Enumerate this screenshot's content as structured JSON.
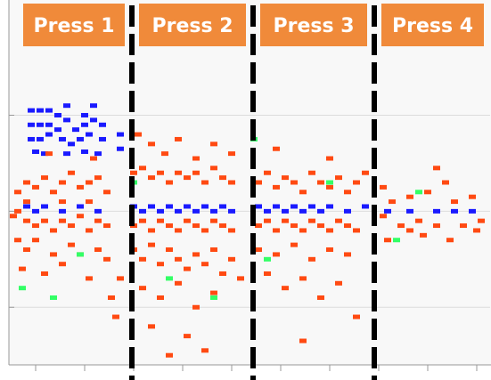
{
  "chart_data": {
    "type": "scatter",
    "headers": [
      "Press 1",
      "Press 2",
      "Press 3",
      "Press 4"
    ],
    "dividers": [
      10.8,
      24.4,
      38
    ],
    "xlim": [
      -3,
      51
    ],
    "ylim": [
      -0.6,
      3.2
    ],
    "xticks": [
      0,
      5.5,
      11,
      16.5,
      22,
      27.5,
      33,
      38.5,
      44,
      49.5
    ],
    "yticks": [
      0,
      1,
      2
    ],
    "grid": true,
    "series": [
      {
        "color": "#1a1aff",
        "x": [
          -0.5,
          0.5,
          1.5,
          2.5,
          3.5,
          5.5,
          6.5,
          -0.5,
          0.5,
          1.5,
          2.5,
          3.5,
          4.5,
          5.5,
          6.5,
          7.5,
          -0.5,
          0.5,
          1.5,
          3.0,
          4.0,
          5.0,
          6.0,
          7.5,
          0.0,
          1.0,
          3.5,
          5.5,
          7.0,
          9.5,
          9.5,
          -1,
          0,
          1,
          3,
          5,
          7,
          11,
          12,
          13,
          14,
          15,
          16,
          17,
          18,
          19,
          20,
          21,
          22,
          25,
          26,
          27,
          28,
          29,
          30,
          31,
          32,
          33,
          35,
          37,
          39.5,
          42,
          45,
          47,
          49
        ],
        "values": [
          2.05,
          2.05,
          2.05,
          2.0,
          2.1,
          2.0,
          2.1,
          1.9,
          1.9,
          1.9,
          1.85,
          1.95,
          1.85,
          1.9,
          1.95,
          1.9,
          1.75,
          1.75,
          1.8,
          1.75,
          1.7,
          1.75,
          1.8,
          1.75,
          1.62,
          1.6,
          1.6,
          1.62,
          1.6,
          1.8,
          1.65,
          1.05,
          1.0,
          1.05,
          1.0,
          1.05,
          1.0,
          1.05,
          1.0,
          1.05,
          1.0,
          1.05,
          1.0,
          1.05,
          1.0,
          1.05,
          1.0,
          1.05,
          1.0,
          1.05,
          1.0,
          1.05,
          1.0,
          1.05,
          1.0,
          1.05,
          1.0,
          1.05,
          1.0,
          1.05,
          1.0,
          1.0,
          1.0,
          1.0,
          1.0
        ]
      },
      {
        "color": "#ff4a12",
        "x": [
          -2,
          -1,
          0,
          1,
          2,
          3,
          4,
          5,
          6,
          7,
          8,
          -2,
          -1,
          0,
          1,
          2,
          3,
          4,
          5,
          6,
          7,
          8,
          -2,
          -1,
          0,
          2,
          4,
          5,
          7,
          8,
          -1.5,
          1,
          3,
          6,
          8.5,
          9,
          9.5,
          -1,
          3,
          6,
          -2.5,
          1.5,
          6.5,
          11.5,
          13,
          14.5,
          16,
          18,
          20,
          22,
          11,
          12,
          13,
          14,
          15,
          16,
          17,
          18,
          19,
          20,
          21,
          22,
          11,
          12,
          13,
          14,
          15,
          16,
          17,
          18,
          19,
          20,
          21,
          22,
          11,
          12,
          13,
          14,
          15,
          16,
          17,
          18,
          19,
          20,
          21,
          22,
          12,
          14,
          16,
          18,
          20,
          13,
          17,
          19,
          15,
          23,
          25,
          26,
          27,
          28,
          29,
          30,
          31,
          32,
          33,
          34,
          35,
          36,
          37,
          25,
          26,
          27,
          28,
          29,
          30,
          31,
          32,
          33,
          34,
          35,
          36,
          25,
          27,
          29,
          31,
          33,
          35,
          26,
          28,
          30,
          32,
          34,
          36,
          30,
          27,
          33,
          39,
          40,
          41,
          42,
          43,
          44,
          45,
          46,
          47,
          48,
          49,
          50,
          39.5,
          43.5,
          46.5,
          49.5,
          45,
          39,
          42
        ],
        "values": [
          1.2,
          1.3,
          1.25,
          1.35,
          1.2,
          1.3,
          1.4,
          1.25,
          1.3,
          1.35,
          1.2,
          1.0,
          0.9,
          0.85,
          0.9,
          0.8,
          0.9,
          0.85,
          0.95,
          0.8,
          0.9,
          0.85,
          0.7,
          0.6,
          0.7,
          0.55,
          0.65,
          0.55,
          0.6,
          0.5,
          0.4,
          0.35,
          0.45,
          0.3,
          0.1,
          -0.1,
          0.3,
          1.1,
          1.1,
          1.1,
          0.95,
          1.6,
          1.55,
          1.8,
          1.7,
          1.6,
          1.75,
          1.55,
          1.7,
          1.6,
          1.4,
          1.45,
          1.35,
          1.4,
          1.3,
          1.4,
          1.35,
          1.4,
          1.3,
          1.45,
          1.35,
          1.3,
          0.85,
          0.9,
          0.8,
          0.9,
          0.85,
          0.8,
          0.9,
          0.85,
          0.8,
          0.9,
          0.85,
          0.8,
          0.6,
          0.5,
          0.65,
          0.45,
          0.6,
          0.5,
          0.4,
          0.55,
          0.45,
          0.6,
          0.35,
          0.5,
          0.2,
          0.1,
          0.25,
          0,
          0.15,
          -0.2,
          -0.3,
          -0.45,
          -0.5,
          0.3,
          1.3,
          1.4,
          1.25,
          1.35,
          1.3,
          1.2,
          1.4,
          1.3,
          1.25,
          1.35,
          1.2,
          1.3,
          1.4,
          0.85,
          0.9,
          0.8,
          0.9,
          0.85,
          0.8,
          0.9,
          0.85,
          0.8,
          0.9,
          0.85,
          0.8,
          0.6,
          0.55,
          0.65,
          0.5,
          0.6,
          0.55,
          0.35,
          0.2,
          0.3,
          0.1,
          0.25,
          -0.1,
          -0.35,
          1.65,
          1.55,
          1.25,
          1.1,
          0.85,
          1.15,
          0.9,
          1.2,
          0.85,
          1.3,
          1.1,
          0.85,
          1.15,
          0.9,
          0.7,
          0.75,
          0.7,
          0.8,
          1.45,
          0.95,
          0.8
        ]
      },
      {
        "color": "#33ff66",
        "x": [
          2,
          5,
          11,
          15,
          20,
          24.5,
          26,
          33,
          40.5,
          -1.5,
          43
        ],
        "values": [
          0.1,
          0.55,
          1.3,
          0.3,
          0.1,
          1.75,
          0.5,
          1.3,
          0.7,
          0.2,
          1.2
        ]
      }
    ]
  }
}
